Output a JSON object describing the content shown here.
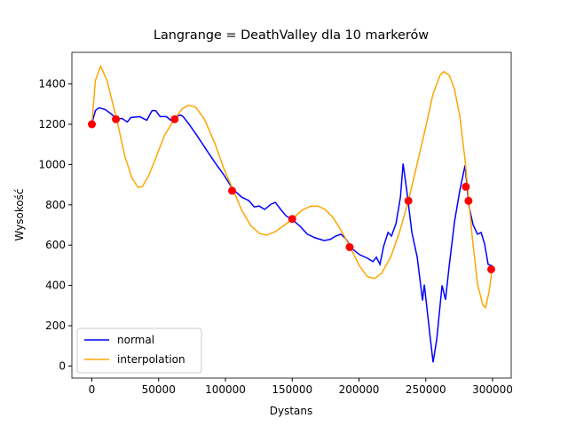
{
  "chart_data": {
    "type": "line",
    "title": "Langrange = DeathValley dla 10 markerów",
    "x_label": "Dystans",
    "y_label": "Wysokość",
    "xlim": [
      -14950,
      313950
    ],
    "ylim": [
      -60,
      1557
    ],
    "xticks": [
      0,
      50000,
      100000,
      150000,
      200000,
      250000,
      300000
    ],
    "yticks": [
      0,
      200,
      400,
      600,
      800,
      1000,
      1200,
      1400
    ],
    "legend_position": "lower left",
    "series": [
      {
        "name": "normal",
        "color": "#0000ff",
        "mode": "line",
        "x": [
          0,
          2650,
          5300,
          10000,
          14600,
          18600,
          22600,
          26500,
          29200,
          35800,
          41100,
          45100,
          47800,
          51100,
          55800,
          59100,
          63000,
          66400,
          68400,
          73000,
          79000,
          85600,
          92300,
          98900,
          105500,
          112200,
          117500,
          121500,
          125400,
          129400,
          134100,
          137400,
          141400,
          145300,
          150700,
          156000,
          161300,
          167200,
          173900,
          178500,
          182500,
          186500,
          190500,
          194500,
          200400,
          206400,
          210400,
          213000,
          215700,
          218400,
          221700,
          224300,
          227700,
          231000,
          233000,
          235600,
          239600,
          243600,
          247600,
          248900,
          250200,
          252900,
          255500,
          258200,
          262200,
          264800,
          267500,
          271500,
          275400,
          279400,
          282100,
          285400,
          288700,
          291400,
          294000,
          296700,
          300000
        ],
        "values": [
          1203,
          1268,
          1282,
          1273,
          1251,
          1225,
          1229,
          1211,
          1233,
          1238,
          1220,
          1268,
          1268,
          1238,
          1238,
          1220,
          1238,
          1246,
          1238,
          1198,
          1141,
          1075,
          1009,
          948,
          878,
          838,
          821,
          790,
          794,
          777,
          803,
          812,
          777,
          746,
          724,
          693,
          654,
          636,
          623,
          628,
          645,
          654,
          628,
          584,
          553,
          535,
          518,
          540,
          505,
          593,
          663,
          645,
          707,
          838,
          1005,
          878,
          663,
          540,
          325,
          404,
          325,
          167,
          18,
          132,
          400,
          329,
          496,
          715,
          869,
          996,
          803,
          702,
          654,
          663,
          606,
          505,
          496
        ]
      },
      {
        "name": "interpolation",
        "color": "#ffa500",
        "mode": "line",
        "x": [
          0,
          2650,
          6600,
          11300,
          18600,
          24600,
          29900,
          34500,
          37800,
          42500,
          47800,
          54400,
          61700,
          67700,
          72300,
          77700,
          84300,
          92300,
          98900,
          105500,
          112200,
          118800,
          125400,
          130700,
          137400,
          144000,
          150700,
          157300,
          163900,
          169200,
          174600,
          180500,
          187200,
          193800,
          200400,
          206400,
          211700,
          217000,
          223700,
          230300,
          237000,
          243600,
          250200,
          255500,
          260800,
          263500,
          267500,
          271500,
          275400,
          279400,
          281400,
          284700,
          288700,
          292700,
          294700,
          297300,
          300000
        ],
        "values": [
          1203,
          1418,
          1488,
          1418,
          1225,
          1045,
          935,
          887,
          891,
          944,
          1031,
          1146,
          1225,
          1277,
          1295,
          1286,
          1225,
          1102,
          979,
          878,
          773,
          698,
          658,
          650,
          667,
          698,
          733,
          773,
          794,
          794,
          777,
          737,
          667,
          584,
          496,
          443,
          435,
          461,
          540,
          663,
          821,
          1005,
          1194,
          1352,
          1444,
          1462,
          1444,
          1374,
          1242,
          1023,
          882,
          645,
          408,
          303,
          290,
          364,
          496
        ]
      },
      {
        "color": "#ff0000",
        "mode": "scatter",
        "x": [
          0,
          18000,
          62000,
          105000,
          150000,
          193000,
          237000,
          280000,
          282000,
          299000
        ],
        "values": [
          1200,
          1225,
          1225,
          870,
          730,
          590,
          820,
          890,
          820,
          480
        ]
      }
    ]
  }
}
